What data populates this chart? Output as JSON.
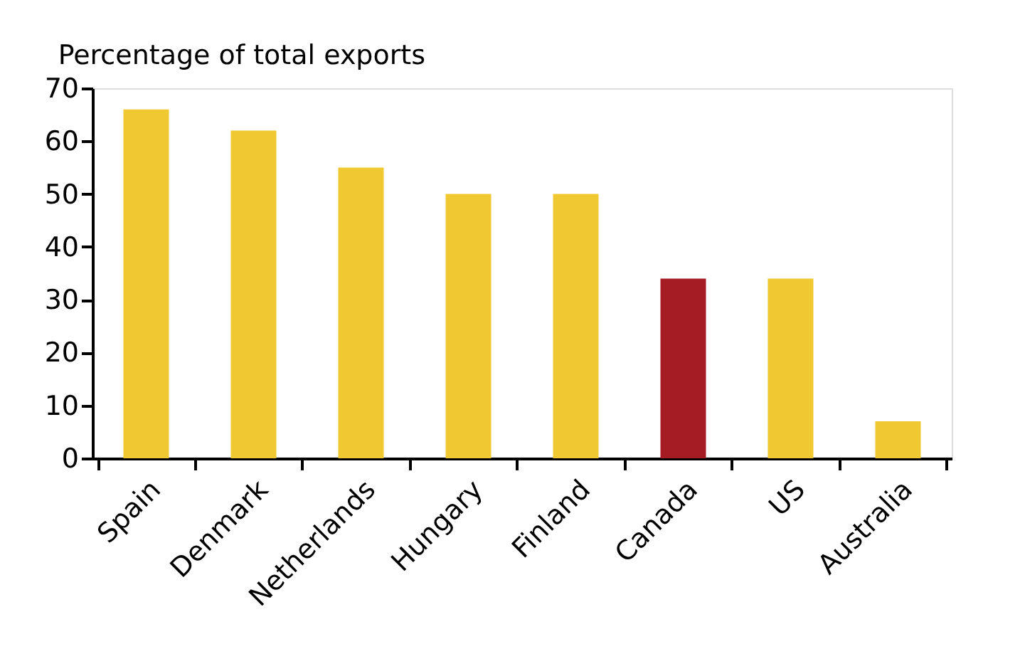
{
  "chart_data": {
    "type": "bar",
    "title": "Percentage of total exports",
    "categories": [
      "Spain",
      "Denmark",
      "Netherlands",
      "Hungary",
      "Finland",
      "Canada",
      "US",
      "Australia"
    ],
    "values": [
      66,
      62,
      55,
      50,
      50,
      34,
      34,
      7
    ],
    "colors": [
      "#f0c832",
      "#f0c832",
      "#f0c832",
      "#f0c832",
      "#f0c832",
      "#a51c24",
      "#f0c832",
      "#f0c832"
    ],
    "ylim": [
      0,
      70
    ],
    "yticks": [
      0,
      10,
      20,
      30,
      40,
      50,
      60,
      70
    ],
    "grid": false,
    "legend": false
  }
}
